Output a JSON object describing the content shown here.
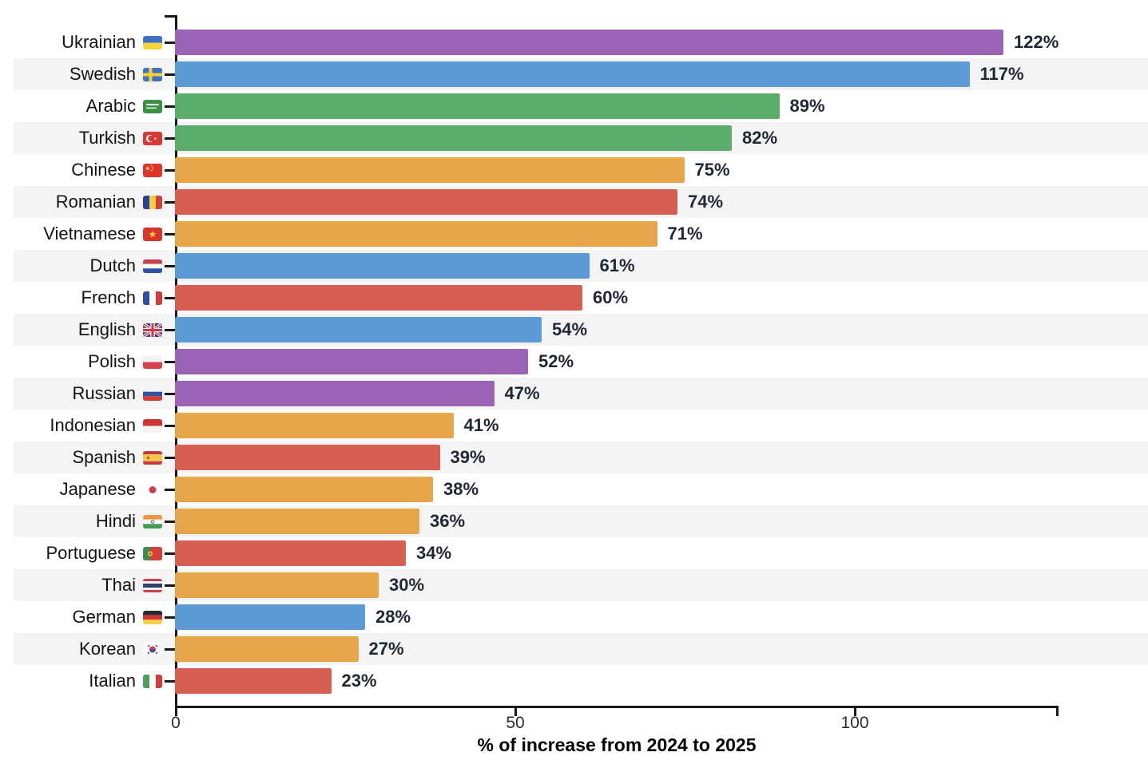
{
  "chart_data": {
    "type": "bar",
    "orientation": "horizontal",
    "title": "",
    "xlabel": "% of increase from 2024 to 2025",
    "ylabel": "",
    "xlim": [
      0,
      130
    ],
    "xticks": [
      0,
      50,
      100
    ],
    "grid": false,
    "legend": false,
    "categories": [
      "Ukrainian",
      "Swedish",
      "Arabic",
      "Turkish",
      "Chinese",
      "Romanian",
      "Vietnamese",
      "Dutch",
      "French",
      "English",
      "Polish",
      "Russian",
      "Indonesian",
      "Spanish",
      "Japanese",
      "Hindi",
      "Portuguese",
      "Thai",
      "German",
      "Korean",
      "Italian"
    ],
    "values": [
      122,
      117,
      89,
      82,
      75,
      74,
      71,
      61,
      60,
      54,
      52,
      47,
      41,
      39,
      38,
      36,
      34,
      30,
      28,
      27,
      23
    ],
    "rows": [
      {
        "label": "Ukrainian",
        "flag": "🇺🇦",
        "flag_name": "flag-ukraine-icon",
        "flag_code": "UA",
        "value": 122,
        "display": "122%",
        "color": "#9a63b5"
      },
      {
        "label": "Swedish",
        "flag": "🇸🇪",
        "flag_name": "flag-sweden-icon",
        "flag_code": "SE",
        "value": 117,
        "display": "117%",
        "color": "#5b9ad6"
      },
      {
        "label": "Arabic",
        "flag": "🇸🇦",
        "flag_name": "flag-saudi-arabia-icon",
        "flag_code": "SA",
        "value": 89,
        "display": "89%",
        "color": "#5cad6c"
      },
      {
        "label": "Turkish",
        "flag": "🇹🇷",
        "flag_name": "flag-turkey-icon",
        "flag_code": "TR",
        "value": 82,
        "display": "82%",
        "color": "#5cad6c"
      },
      {
        "label": "Chinese",
        "flag": "🇨🇳",
        "flag_name": "flag-china-icon",
        "flag_code": "CN",
        "value": 75,
        "display": "75%",
        "color": "#e8a64a"
      },
      {
        "label": "Romanian",
        "flag": "🇷🇴",
        "flag_name": "flag-romania-icon",
        "flag_code": "RO",
        "value": 74,
        "display": "74%",
        "color": "#d65f51"
      },
      {
        "label": "Vietnamese",
        "flag": "🇻🇳",
        "flag_name": "flag-vietnam-icon",
        "flag_code": "VN",
        "value": 71,
        "display": "71%",
        "color": "#e8a64a"
      },
      {
        "label": "Dutch",
        "flag": "🇳🇱",
        "flag_name": "flag-netherlands-icon",
        "flag_code": "NL",
        "value": 61,
        "display": "61%",
        "color": "#5b9ad6"
      },
      {
        "label": "French",
        "flag": "🇫🇷",
        "flag_name": "flag-france-icon",
        "flag_code": "FR",
        "value": 60,
        "display": "60%",
        "color": "#d65f51"
      },
      {
        "label": "English",
        "flag": "🇬🇧",
        "flag_name": "flag-united-kingdom-icon",
        "flag_code": "GB",
        "value": 54,
        "display": "54%",
        "color": "#5b9ad6"
      },
      {
        "label": "Polish",
        "flag": "🇵🇱",
        "flag_name": "flag-poland-icon",
        "flag_code": "PL",
        "value": 52,
        "display": "52%",
        "color": "#9a63b5"
      },
      {
        "label": "Russian",
        "flag": "🇷🇺",
        "flag_name": "flag-russia-icon",
        "flag_code": "RU",
        "value": 47,
        "display": "47%",
        "color": "#9a63b5"
      },
      {
        "label": "Indonesian",
        "flag": "🇮🇩",
        "flag_name": "flag-indonesia-icon",
        "flag_code": "ID",
        "value": 41,
        "display": "41%",
        "color": "#e8a64a"
      },
      {
        "label": "Spanish",
        "flag": "🇪🇸",
        "flag_name": "flag-spain-icon",
        "flag_code": "ES",
        "value": 39,
        "display": "39%",
        "color": "#d65f51"
      },
      {
        "label": "Japanese",
        "flag": "🇯🇵",
        "flag_name": "flag-japan-icon",
        "flag_code": "JP",
        "value": 38,
        "display": "38%",
        "color": "#e8a64a"
      },
      {
        "label": "Hindi",
        "flag": "🇮🇳",
        "flag_name": "flag-india-icon",
        "flag_code": "IN",
        "value": 36,
        "display": "36%",
        "color": "#e8a64a"
      },
      {
        "label": "Portuguese",
        "flag": "🇵🇹",
        "flag_name": "flag-portugal-icon",
        "flag_code": "PT",
        "value": 34,
        "display": "34%",
        "color": "#d65f51"
      },
      {
        "label": "Thai",
        "flag": "🇹🇭",
        "flag_name": "flag-thailand-icon",
        "flag_code": "TH",
        "value": 30,
        "display": "30%",
        "color": "#e8a64a"
      },
      {
        "label": "German",
        "flag": "🇩🇪",
        "flag_name": "flag-germany-icon",
        "flag_code": "DE",
        "value": 28,
        "display": "28%",
        "color": "#5b9ad6"
      },
      {
        "label": "Korean",
        "flag": "🇰🇷",
        "flag_name": "flag-south-korea-icon",
        "flag_code": "KR",
        "value": 27,
        "display": "27%",
        "color": "#e8a64a"
      },
      {
        "label": "Italian",
        "flag": "🇮🇹",
        "flag_name": "flag-italy-icon",
        "flag_code": "IT",
        "value": 23,
        "display": "23%",
        "color": "#d65f51"
      }
    ]
  },
  "colors": {
    "background": "#ffffff",
    "stripe": "#f4f4f5",
    "axis": "#1a1a1a",
    "label_text": "#111318",
    "value_text": "#1e2734",
    "tick_text": "#2d2d2d",
    "title_text": "#3a3a3a",
    "palette": {
      "purple": "#9a63b5",
      "blue": "#5b9ad6",
      "green": "#5cad6c",
      "orange": "#e8a64a",
      "red": "#d65f51"
    }
  }
}
